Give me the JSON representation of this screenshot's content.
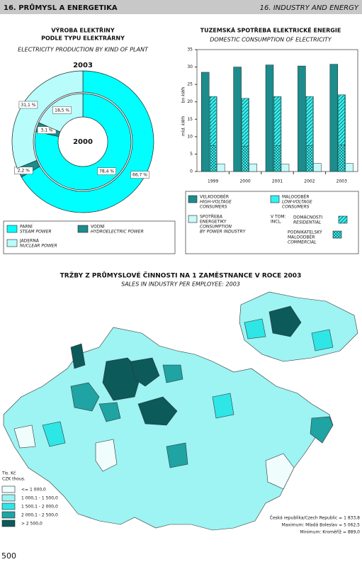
{
  "header": {
    "left": "16. PRŮMYSL A ENERGETIKA",
    "right": "16. INDUSTRY AND ENERGY"
  },
  "chart_data": [
    {
      "type": "donut",
      "title": [
        "VÝROBA ELEKTŘINY",
        "PODLE TYPU ELEKTRÁRNY"
      ],
      "subtitle": "ELECTRICITY PRODUCTION BY KIND OF PLANT",
      "categories": [
        {
          "name": "PARNÍ",
          "name_en": "STEAM POWER",
          "color": "#00ffff"
        },
        {
          "name": "VODNÍ",
          "name_en": "HYDROELECTRIC POWER",
          "color": "#1c8c8c"
        },
        {
          "name": "JADERNÁ",
          "name_en": "NUCLEAR POWER",
          "color": "#b8fcfc"
        }
      ],
      "rings": [
        {
          "name": "2003",
          "values": [
            66.7,
            2.2,
            31.1
          ],
          "value_labels": [
            "66,7 %",
            "2,2 %",
            "31,1 %"
          ]
        },
        {
          "name": "2000",
          "values": [
            78.4,
            3.1,
            18.5
          ],
          "value_labels": [
            "78,4 %",
            "3,1 %",
            "18,5 %"
          ]
        }
      ]
    },
    {
      "type": "bar",
      "title": "TUZEMSKÁ SPOTŘEBA ELEKTRICKÉ ENERGIE",
      "subtitle": "DOMESTIC CONSUMPTION OF ELECTRICITY",
      "ylabel": [
        "mld. kWh",
        "bn kWh"
      ],
      "categories": [
        "1999",
        "2000",
        "2001",
        "2002",
        "2003"
      ],
      "series": [
        {
          "name": [
            "VELKOODBĚR"
          ],
          "name_en": [
            "HIGH-VOLTAGE",
            "CONSUMERS"
          ],
          "color": "#1c8c8c",
          "values": [
            28.5,
            30.0,
            30.6,
            30.3,
            30.8
          ]
        },
        {
          "name": [
            "MALOODBĚR"
          ],
          "name_en": [
            "LOW-VOLTAGE",
            "CONSUMERS"
          ],
          "color": "#33f0f0",
          "values": [
            21.5,
            21.0,
            21.5,
            21.5,
            22.0
          ]
        },
        {
          "name": [
            "PODNIKATELSKÝ",
            "MALOODBĚR"
          ],
          "name_en": [
            "COMMERCIAL"
          ],
          "color": "#33f0f0",
          "pattern": "cross",
          "values": [
            7.5,
            7.3,
            7.4,
            7.4,
            7.6
          ]
        },
        {
          "name": [
            "DOMÁCNOSTI"
          ],
          "name_en": [
            "RESIDENTIAL"
          ],
          "color": "#33f0f0",
          "pattern": "diag",
          "values": [
            14.0,
            13.7,
            14.1,
            14.1,
            14.4
          ]
        },
        {
          "name": [
            "SPOTŘEBA",
            "ENERGETIKY"
          ],
          "name_en": [
            "CONSUMPTION",
            "BY POWER INDUSTRY"
          ],
          "color": "#c8fafa",
          "values": [
            2.2,
            2.2,
            2.1,
            2.3,
            2.3
          ]
        }
      ],
      "legend_note": [
        "V TOM:",
        "INCL."
      ],
      "ylim": [
        0,
        35
      ],
      "yticks": [
        0,
        5,
        10,
        15,
        20,
        25,
        30,
        35
      ]
    }
  ],
  "map": {
    "title": "TRŽBY Z PRŮMYSLOVÉ ČINNOSTI NA 1 ZAMĚSTNANCE V ROCE 2003",
    "subtitle": "SALES IN INDUSTRY PER EMPLOYEE: 2003",
    "unit": [
      "Tis. Kč",
      "CZK thous."
    ],
    "classes": [
      {
        "label": "<= 1 000,0",
        "color": "#f0fdfd"
      },
      {
        "label": "1 000,1 - 1 500,0",
        "color": "#9ef3f3"
      },
      {
        "label": "1 500,1 - 2 000,0",
        "color": "#2ee6e6"
      },
      {
        "label": "2 000,1 - 2 500,0",
        "color": "#1fa3a3"
      },
      {
        "label": "> 2 500,0",
        "color": "#0c5a5a"
      }
    ],
    "notes": [
      "Česká republika/Czech Republic = 1 833,8",
      "Maximum: Mladá Boleslav = 5 062,5",
      "Minimum: Kroměříž = 889,0"
    ]
  },
  "page_number": "500"
}
